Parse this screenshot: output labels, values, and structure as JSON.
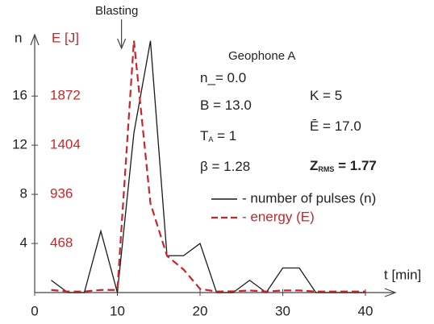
{
  "chart_data": {
    "type": "line",
    "annotation_title": "Geophone A",
    "annotation_event": "Blasting",
    "y_label": "n",
    "y2_label": "E [J]",
    "x_label": "t [min]",
    "x": [
      2,
      4,
      6,
      8,
      10,
      12,
      14,
      16,
      18,
      20,
      22,
      24,
      26,
      28,
      30,
      32,
      34,
      36,
      38,
      40
    ],
    "event_x": 10.5,
    "series": [
      {
        "name": "- number of pulses (n)",
        "color": "#1a1a1a",
        "dashed": false,
        "values": [
          1,
          0,
          0,
          5,
          0,
          13,
          20.5,
          3,
          3,
          4,
          0,
          0,
          1,
          0,
          2,
          2,
          0,
          0,
          0,
          0
        ]
      },
      {
        "name": "- energy (E)",
        "color": "#c8262a",
        "dashed": true,
        "axis": "y2",
        "values": [
          25,
          10,
          10,
          25,
          25,
          2400,
          850,
          350,
          220,
          35,
          10,
          12,
          20,
          10,
          20,
          20,
          10,
          10,
          10,
          10
        ]
      }
    ],
    "xlim": [
      0,
      44
    ],
    "xticks": [
      0,
      10,
      20,
      30,
      40
    ],
    "ylim": [
      0,
      21
    ],
    "yticks": [
      4,
      8,
      12,
      16
    ],
    "y2lim": [
      0,
      2457
    ],
    "y2ticks": [
      468,
      936,
      1404,
      1872
    ],
    "parameters": [
      {
        "text": "n_=  0.0"
      },
      {
        "text": "B = 13.0"
      },
      {
        "text": "T",
        "sub": "A",
        "suffix": " = 1"
      },
      {
        "text": "β = 1.28"
      },
      {
        "text": "K = 5"
      },
      {
        "text": "Ē = 17.0"
      },
      {
        "text": "Z",
        "sub": "RMS",
        "suffix": " = 1.77"
      }
    ]
  }
}
